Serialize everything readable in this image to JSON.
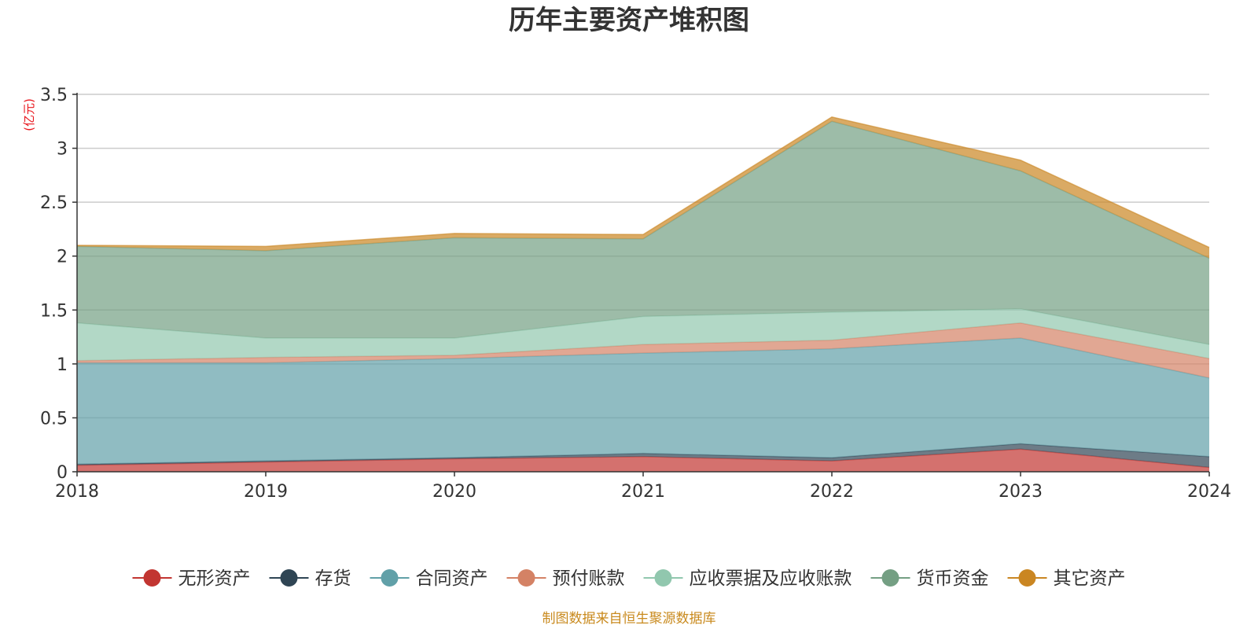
{
  "chart_data": {
    "type": "area",
    "stacked": true,
    "title": "历年主要资产堆积图",
    "unit_label": "(亿元)",
    "x": [
      "2018",
      "2019",
      "2020",
      "2021",
      "2022",
      "2023",
      "2024"
    ],
    "ylim": [
      0,
      3.5
    ],
    "yticks": [
      "0",
      "0.5",
      "1",
      "1.5",
      "2",
      "2.5",
      "3",
      "3.5"
    ],
    "grid": true,
    "legend_position": "bottom",
    "series": [
      {
        "name": "无形资产",
        "color": "#c23531",
        "values": [
          0.06,
          0.09,
          0.12,
          0.14,
          0.1,
          0.21,
          0.04
        ]
      },
      {
        "name": "存货",
        "color": "#2f4554",
        "values": [
          0.01,
          0.01,
          0.01,
          0.03,
          0.03,
          0.05,
          0.1
        ]
      },
      {
        "name": "合同资产",
        "color": "#61a0a8",
        "values": [
          0.94,
          0.91,
          0.92,
          0.93,
          1.01,
          0.98,
          0.73
        ]
      },
      {
        "name": "预付账款",
        "color": "#d48265",
        "values": [
          0.02,
          0.05,
          0.03,
          0.08,
          0.08,
          0.14,
          0.18
        ]
      },
      {
        "name": "应收票据及应收账款",
        "color": "#91c7ae",
        "values": [
          0.35,
          0.18,
          0.16,
          0.26,
          0.26,
          0.13,
          0.13
        ]
      },
      {
        "name": "货币资金",
        "color": "#749f83",
        "values": [
          0.71,
          0.81,
          0.93,
          0.72,
          1.77,
          1.28,
          0.8
        ]
      },
      {
        "name": "其它资产",
        "color": "#ca8622",
        "values": [
          0.01,
          0.04,
          0.04,
          0.04,
          0.04,
          0.1,
          0.1
        ]
      }
    ],
    "source_note": "制图数据来自恒生聚源数据库"
  }
}
